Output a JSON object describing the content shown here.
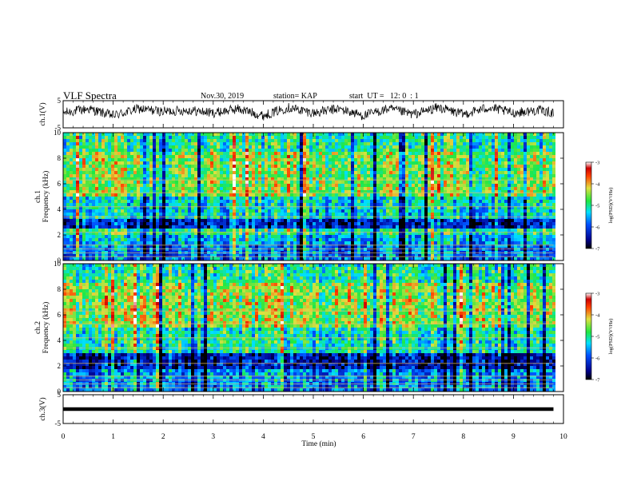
{
  "header": {
    "title": "VLF Spectra",
    "date": "Nov.30, 2019",
    "station": "station= KAP",
    "start": "start  UT =   12: 0  : 1"
  },
  "chart_data": [
    {
      "type": "line",
      "name": "ch1-waveform",
      "ylabel": "ch.1(V)",
      "ylim": [
        -5,
        5
      ],
      "yticks": [
        "5",
        "-5"
      ],
      "xlim": [
        0,
        10
      ],
      "x": [
        0,
        0.5,
        1,
        1.5,
        2,
        2.5,
        3,
        3.5,
        4,
        4.5,
        5,
        5.5,
        6,
        6.5,
        7,
        7.5,
        8,
        8.5,
        9,
        9.5,
        9.8
      ],
      "values": [
        0.5,
        2.0,
        -0.5,
        2.0,
        1.0,
        1.5,
        0.5,
        2.0,
        -0.5,
        2.5,
        0.5,
        2.0,
        -0.5,
        2.0,
        0.0,
        2.5,
        0.0,
        2.5,
        0.5,
        1.5,
        0.5
      ]
    },
    {
      "type": "heatmap",
      "name": "ch1-spectrogram",
      "ylabel": "ch.1\nFrequency (kHz)",
      "ylim": [
        0,
        10
      ],
      "yticks": [
        "0",
        "2",
        "4",
        "6",
        "8",
        "10"
      ],
      "xlim": [
        0,
        9.8
      ],
      "colorbar": {
        "label": "log(PSD)(V²/Hz)",
        "range": [
          -7,
          -3
        ],
        "ticks": [
          "-3",
          "-4",
          "-5",
          "-6",
          "-7"
        ]
      },
      "bands": [
        {
          "from": 0.0,
          "to": 1.2,
          "level": -5.8
        },
        {
          "from": 1.2,
          "to": 2.0,
          "level": -5.5
        },
        {
          "from": 2.0,
          "to": 2.6,
          "level": -5.0
        },
        {
          "from": 2.6,
          "to": 3.2,
          "level": -6.3
        },
        {
          "from": 3.2,
          "to": 5.0,
          "level": -5.3
        },
        {
          "from": 5.0,
          "to": 8.6,
          "level": -4.6
        },
        {
          "from": 8.6,
          "to": 10.0,
          "level": -5.0
        }
      ]
    },
    {
      "type": "heatmap",
      "name": "ch2-spectrogram",
      "ylabel": "ch.2\nFrequency (kHz)",
      "ylim": [
        0,
        10
      ],
      "yticks": [
        "0",
        "2",
        "4",
        "6",
        "8",
        "10"
      ],
      "xlim": [
        0,
        9.8
      ],
      "colorbar": {
        "label": "log(PSD)(V²/Hz)",
        "range": [
          -7,
          -3
        ],
        "ticks": [
          "-3",
          "-4",
          "-5",
          "-6",
          "-7"
        ]
      },
      "bands": [
        {
          "from": 0.0,
          "to": 1.8,
          "level": -5.7
        },
        {
          "from": 1.8,
          "to": 3.0,
          "level": -6.4
        },
        {
          "from": 3.0,
          "to": 5.0,
          "level": -5.1
        },
        {
          "from": 5.0,
          "to": 8.6,
          "level": -4.5
        },
        {
          "from": 8.6,
          "to": 10.0,
          "level": -5.0
        }
      ]
    },
    {
      "type": "line",
      "name": "ch3-waveform",
      "ylabel": "ch.3(V)",
      "ylim": [
        -5,
        5
      ],
      "yticks": [
        "5",
        "-5"
      ],
      "xlim": [
        0,
        10
      ],
      "x": [
        0,
        9.8
      ],
      "values": [
        0,
        0
      ]
    }
  ],
  "xaxis": {
    "label": "Time (min)",
    "ticks": [
      "0",
      "1",
      "2",
      "3",
      "4",
      "5",
      "6",
      "7",
      "8",
      "9",
      "10"
    ]
  }
}
